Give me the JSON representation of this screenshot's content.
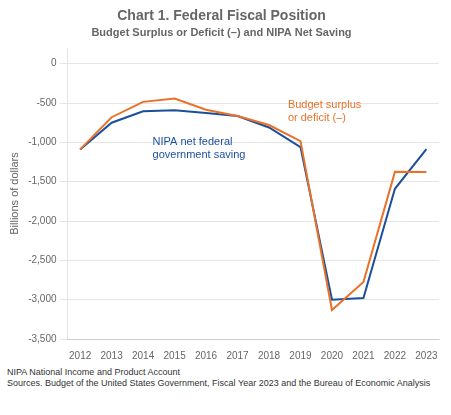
{
  "chart_data": {
    "type": "line",
    "title": "Chart 1. Federal Fiscal Position",
    "subtitle": "Budget Surplus or Deficit (–) and NIPA Net Saving",
    "ylabel": "Billions of dollars",
    "footnotes": [
      "NIPA National Income and Product Account",
      "Sources. Budget of the United States Government, Fiscal Year 2023 and the Bureau of Economic Analysis"
    ],
    "x": [
      2012,
      2013,
      2014,
      2015,
      2016,
      2017,
      2018,
      2019,
      2020,
      2021,
      2022,
      2023
    ],
    "series": [
      {
        "color": "#e8722a",
        "values": [
          -1089,
          -680,
          -485,
          -442,
          -585,
          -665,
          -779,
          -984,
          -3132,
          -2776,
          -1375,
          -1376
        ]
      },
      {
        "color": "#1b4f9c",
        "values": [
          -1090,
          -750,
          -605,
          -590,
          -625,
          -665,
          -810,
          -1060,
          -3000,
          -2980,
          -1590,
          -1085
        ]
      }
    ],
    "annotations": [
      {
        "text": "Budget surplus\nor deficit (–)",
        "x": 2018.6,
        "y": -460,
        "color": "#e8722a"
      },
      {
        "text": "NIPA net federal\ngovernment saving",
        "x": 2014.3,
        "y": -930,
        "color": "#1b4f9c"
      }
    ],
    "xlim": [
      2011.6,
      2023.4
    ],
    "xticks": [
      2012,
      2013,
      2014,
      2015,
      2016,
      2017,
      2018,
      2019,
      2020,
      2021,
      2022,
      2023
    ],
    "ylim": [
      -3500,
      200
    ],
    "yticks": [
      0,
      -500,
      {
        "value": -1000,
        "label": "-1,000"
      },
      {
        "value": -1500,
        "label": "-1,500"
      },
      {
        "value": -2000,
        "label": "-2,000"
      },
      {
        "value": -2500,
        "label": "-2,500"
      },
      {
        "value": -3000,
        "label": "-3,000"
      },
      {
        "value": -3500,
        "label": "-3,500"
      }
    ],
    "grid": "y"
  }
}
